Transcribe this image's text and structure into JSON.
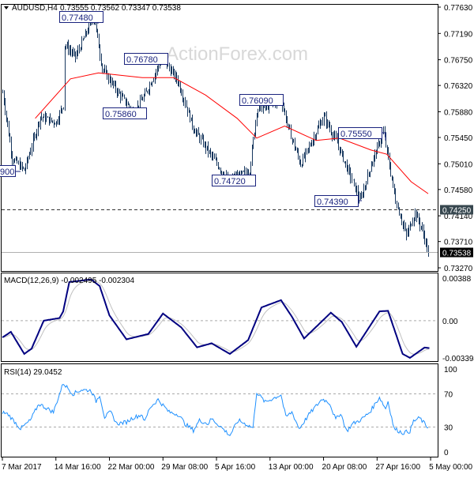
{
  "header": {
    "symbol_label": "AUDUSD,H4",
    "ohlc": "0.73555 0.73562 0.73347 0.73538",
    "watermark": "ActionForex.com"
  },
  "chart_data": [
    {
      "type": "bar",
      "name": "AUDUSD,H4",
      "ylim": [
        0.7327,
        0.7763
      ],
      "y_ticks": [
        "0.77630",
        "0.77190",
        "0.76750",
        "0.76320",
        "0.75880",
        "0.75450",
        "0.75010",
        "0.74580",
        "0.74140",
        "0.73710",
        "0.73270"
      ],
      "x_tick_labels": [
        "7 Mar 2017",
        "14 Mar 16:00",
        "22 Mar 00:00",
        "29 Mar 08:00",
        "5 Apr 16:00",
        "13 Apr 00:00",
        "20 Apr 08:00",
        "27 Apr 16:00",
        "5 May 00:00"
      ],
      "bars_per_x_tick": 44,
      "price_path": [
        [
          0,
          0.762
        ],
        [
          8,
          0.751
        ],
        [
          18,
          0.749
        ],
        [
          31,
          0.758
        ],
        [
          44,
          0.757
        ],
        [
          50,
          0.76
        ],
        [
          51,
          0.77
        ],
        [
          60,
          0.768
        ],
        [
          75,
          0.7748
        ],
        [
          82,
          0.766
        ],
        [
          95,
          0.762
        ],
        [
          108,
          0.7586
        ],
        [
          118,
          0.762
        ],
        [
          131,
          0.7678
        ],
        [
          144,
          0.764
        ],
        [
          157,
          0.756
        ],
        [
          173,
          0.751
        ],
        [
          186,
          0.7472
        ],
        [
          203,
          0.749
        ],
        [
          209,
          0.759
        ],
        [
          229,
          0.7609
        ],
        [
          235,
          0.756
        ],
        [
          245,
          0.75
        ],
        [
          264,
          0.758
        ],
        [
          274,
          0.754
        ],
        [
          284,
          0.749
        ],
        [
          294,
          0.7439
        ],
        [
          303,
          0.75
        ],
        [
          313,
          0.7555
        ],
        [
          323,
          0.744
        ],
        [
          332,
          0.738
        ],
        [
          339,
          0.742
        ],
        [
          345,
          0.739
        ],
        [
          350,
          0.73538
        ]
      ],
      "moving_average": [
        [
          27,
          0.7577
        ],
        [
          56,
          0.7643
        ],
        [
          79,
          0.7653
        ],
        [
          115,
          0.7645
        ],
        [
          141,
          0.7645
        ],
        [
          167,
          0.7616
        ],
        [
          193,
          0.7577
        ],
        [
          209,
          0.7544
        ],
        [
          232,
          0.7564
        ],
        [
          258,
          0.754
        ],
        [
          277,
          0.7544
        ],
        [
          303,
          0.7524
        ],
        [
          316,
          0.7517
        ],
        [
          336,
          0.7471
        ],
        [
          350,
          0.7451
        ]
      ],
      "ma_color": "#ff0000",
      "bar_color": "#17375e",
      "horizontal_level": {
        "value": 0.7425,
        "label": "0.74250",
        "style": "dashed"
      },
      "current_price": {
        "value": 0.73538,
        "label": "0.73538"
      },
      "annotations": [
        {
          "label": "0.77480"
        },
        {
          "label": "0.76780"
        },
        {
          "label": "0.75860"
        },
        {
          "label": "0.76090"
        },
        {
          "label": "0.74720"
        },
        {
          "label": "0.75550"
        },
        {
          "label": "0.74390"
        },
        {
          "label": "900"
        }
      ]
    },
    {
      "type": "line",
      "title": "MACD(12,26,9) -0.002495 -0.002304",
      "ylim": [
        -0.003394,
        0.00388
      ],
      "y_ticks": [
        "0.00388",
        "0.00",
        "-0.003394"
      ],
      "main_color": "#000080",
      "signal_color": "#c0c0c0",
      "main": [
        [
          0,
          -0.00153
        ],
        [
          7,
          -0.00102
        ],
        [
          18,
          -0.00303
        ],
        [
          24,
          -0.00255
        ],
        [
          34,
          0.0
        ],
        [
          47,
          0.00024
        ],
        [
          50,
          0.00085
        ],
        [
          55,
          0.00352
        ],
        [
          73,
          0.00376
        ],
        [
          80,
          0.00315
        ],
        [
          88,
          0.00048
        ],
        [
          102,
          -0.0017
        ],
        [
          120,
          -0.00121
        ],
        [
          132,
          0.00065
        ],
        [
          147,
          -0.00061
        ],
        [
          160,
          -0.00243
        ],
        [
          172,
          -0.00206
        ],
        [
          187,
          -0.00303
        ],
        [
          202,
          -0.00177
        ],
        [
          213,
          0.00121
        ],
        [
          229,
          0.00187
        ],
        [
          238,
          0.00036
        ],
        [
          248,
          -0.00162
        ],
        [
          270,
          0.00073
        ],
        [
          279,
          -0.00012
        ],
        [
          291,
          -0.00238
        ],
        [
          310,
          0.00085
        ],
        [
          317,
          0.0009
        ],
        [
          329,
          -0.00303
        ],
        [
          335,
          -0.00339
        ],
        [
          347,
          -0.00245
        ],
        [
          351,
          -0.002495
        ]
      ]
    },
    {
      "type": "line",
      "title": "RSI(14) 29.0452",
      "ylim": [
        0,
        100
      ],
      "y_ticks": [
        "100",
        "70",
        "30",
        "0"
      ],
      "levels": [
        70,
        30
      ],
      "color": "#1e90ff",
      "values": [
        [
          0,
          48
        ],
        [
          5,
          45
        ],
        [
          15,
          28
        ],
        [
          23,
          38
        ],
        [
          30,
          58
        ],
        [
          42,
          48
        ],
        [
          50,
          83
        ],
        [
          58,
          70
        ],
        [
          65,
          75
        ],
        [
          73,
          74
        ],
        [
          77,
          61
        ],
        [
          80,
          69
        ],
        [
          84,
          42
        ],
        [
          89,
          48
        ],
        [
          94,
          34
        ],
        [
          102,
          36
        ],
        [
          107,
          41
        ],
        [
          115,
          45
        ],
        [
          117,
          36
        ],
        [
          121,
          53
        ],
        [
          128,
          63
        ],
        [
          137,
          48
        ],
        [
          145,
          45
        ],
        [
          150,
          34
        ],
        [
          157,
          26
        ],
        [
          162,
          38
        ],
        [
          169,
          34
        ],
        [
          172,
          40
        ],
        [
          179,
          31
        ],
        [
          187,
          20
        ],
        [
          194,
          38
        ],
        [
          206,
          29
        ],
        [
          209,
          72
        ],
        [
          216,
          60
        ],
        [
          229,
          69
        ],
        [
          233,
          42
        ],
        [
          238,
          48
        ],
        [
          244,
          28
        ],
        [
          253,
          47
        ],
        [
          263,
          64
        ],
        [
          269,
          59
        ],
        [
          274,
          39
        ],
        [
          278,
          47
        ],
        [
          283,
          25
        ],
        [
          288,
          34
        ],
        [
          295,
          39
        ],
        [
          302,
          48
        ],
        [
          310,
          66
        ],
        [
          315,
          52
        ],
        [
          317,
          61
        ],
        [
          322,
          28
        ],
        [
          329,
          23
        ],
        [
          335,
          25
        ],
        [
          338,
          37
        ],
        [
          343,
          41
        ],
        [
          347,
          34
        ],
        [
          350,
          29.0452
        ]
      ]
    }
  ]
}
